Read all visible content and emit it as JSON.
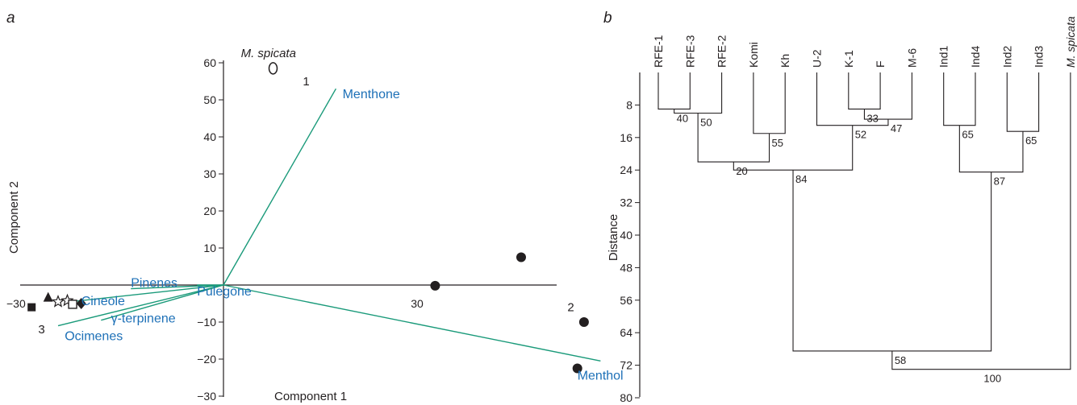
{
  "colors": {
    "text": "#231f20",
    "vector": "#1a9a7a",
    "loading_label": "#1d70b7"
  },
  "chart_data": [
    {
      "type": "scatter",
      "panel_label": "a",
      "xlabel": "Component 1",
      "ylabel": "Component 2",
      "xlim": [
        -32,
        70
      ],
      "ylim": [
        -30,
        62
      ],
      "x_ticks": [
        {
          "value": -30,
          "label": "−30"
        },
        {
          "value": 30,
          "label": "30"
        }
      ],
      "y_ticks": [
        {
          "value": 60,
          "label": "60"
        },
        {
          "value": 50,
          "label": "50"
        },
        {
          "value": 40,
          "label": "40"
        },
        {
          "value": 30,
          "label": "30"
        },
        {
          "value": 20,
          "label": "20"
        },
        {
          "value": 10,
          "label": "10"
        },
        {
          "value": -10,
          "label": "−10"
        },
        {
          "value": -20,
          "label": "−20"
        },
        {
          "value": -30,
          "label": "−30"
        }
      ],
      "point_label": {
        "text": "M. spicata",
        "x": 6.8,
        "y": 61.5
      },
      "group_labels": [
        {
          "text": "1",
          "x": 12.5,
          "y": 55
        },
        {
          "text": "2",
          "x": 52.5,
          "y": -6
        },
        {
          "text": "3",
          "x": -27.5,
          "y": -12
        }
      ],
      "series": [
        {
          "marker": "open-ellipse",
          "points": [
            [
              7.5,
              58.5
            ]
          ]
        },
        {
          "marker": "filled-circle",
          "points": [
            [
              32,
              -0.2
            ],
            [
              45,
              7.5
            ],
            [
              54.5,
              -10
            ],
            [
              53.5,
              -22.5
            ]
          ]
        },
        {
          "marker": "filled-square",
          "points": [
            [
              -29,
              -6
            ]
          ]
        },
        {
          "marker": "filled-triangle",
          "points": [
            [
              -26.5,
              -3.4
            ]
          ]
        },
        {
          "marker": "open-star",
          "points": [
            [
              -25,
              -4.5
            ]
          ]
        },
        {
          "marker": "open-star",
          "points": [
            [
              -23.6,
              -4.2
            ]
          ]
        },
        {
          "marker": "open-square",
          "points": [
            [
              -22.8,
              -5.2
            ]
          ]
        },
        {
          "marker": "filled-diamond",
          "points": [
            [
              -21.5,
              -5
            ]
          ]
        }
      ],
      "loadings": [
        {
          "name": "Menthone",
          "x": 17,
          "y": 53,
          "label_x": 18,
          "label_y": 51.5
        },
        {
          "name": "Menthol",
          "x": 57,
          "y": -20.5,
          "label_x": 53.5,
          "label_y": -24.5
        },
        {
          "name": "Cineole",
          "x": -23,
          "y": -4.5,
          "label_x": -21.5,
          "label_y": -4.3
        },
        {
          "name": "Pinenes",
          "x": -14,
          "y": -1,
          "label_x": -14,
          "label_y": 0.5
        },
        {
          "name": "Pulegone",
          "x": -4,
          "y": 0,
          "label_x": -4,
          "label_y": -1.7
        },
        {
          "name": "γ-terpinene",
          "x": -18.5,
          "y": -9.5,
          "label_x": -17,
          "label_y": -9
        },
        {
          "name": "Ocimenes",
          "x": -25,
          "y": -11,
          "label_x": -24,
          "label_y": -13.8
        }
      ],
      "vector_origin": [
        0,
        0
      ]
    },
    {
      "type": "dendrogram",
      "panel_label": "b",
      "ylabel": "Distance",
      "ylim": [
        0,
        80
      ],
      "y_ticks": [
        8,
        16,
        24,
        32,
        40,
        48,
        56,
        64,
        72,
        80
      ],
      "leaves": [
        "RFE-1",
        "RFE-3",
        "RFE-2",
        "Komi",
        "Kh",
        "U-2",
        "K-1",
        "F",
        "M-6",
        "Ind1",
        "Ind4",
        "Ind2",
        "Ind3",
        "M. spicata"
      ],
      "merges": [
        {
          "id": "n1",
          "children": [
            "RFE-1",
            "RFE-3"
          ],
          "height": 9,
          "support": "40"
        },
        {
          "id": "n2",
          "children": [
            "n1",
            "RFE-2"
          ],
          "height": 10,
          "support": "50"
        },
        {
          "id": "n3",
          "children": [
            "Komi",
            "Kh"
          ],
          "height": 15,
          "support": "55"
        },
        {
          "id": "n4",
          "children": [
            "n2",
            "n3"
          ],
          "height": 22,
          "support": "20"
        },
        {
          "id": "n5",
          "children": [
            "K-1",
            "F"
          ],
          "height": 9,
          "support": "33"
        },
        {
          "id": "n6",
          "children": [
            "n5",
            "M-6"
          ],
          "height": 11.5,
          "support": "47"
        },
        {
          "id": "n7",
          "children": [
            "U-2",
            "n6"
          ],
          "height": 13,
          "support": "52"
        },
        {
          "id": "n8",
          "children": [
            "n4",
            "n7"
          ],
          "height": 24,
          "support": "84"
        },
        {
          "id": "n9",
          "children": [
            "Ind1",
            "Ind4"
          ],
          "height": 13,
          "support": "65"
        },
        {
          "id": "n10",
          "children": [
            "Ind2",
            "Ind3"
          ],
          "height": 14.5,
          "support": "65"
        },
        {
          "id": "n11",
          "children": [
            "n9",
            "n10"
          ],
          "height": 24.5,
          "support": "87"
        },
        {
          "id": "n12",
          "children": [
            "n8",
            "n11"
          ],
          "height": 68.5,
          "support": "58"
        },
        {
          "id": "n13",
          "children": [
            "n12",
            "M. spicata"
          ],
          "height": 73,
          "support": "100"
        }
      ]
    }
  ]
}
